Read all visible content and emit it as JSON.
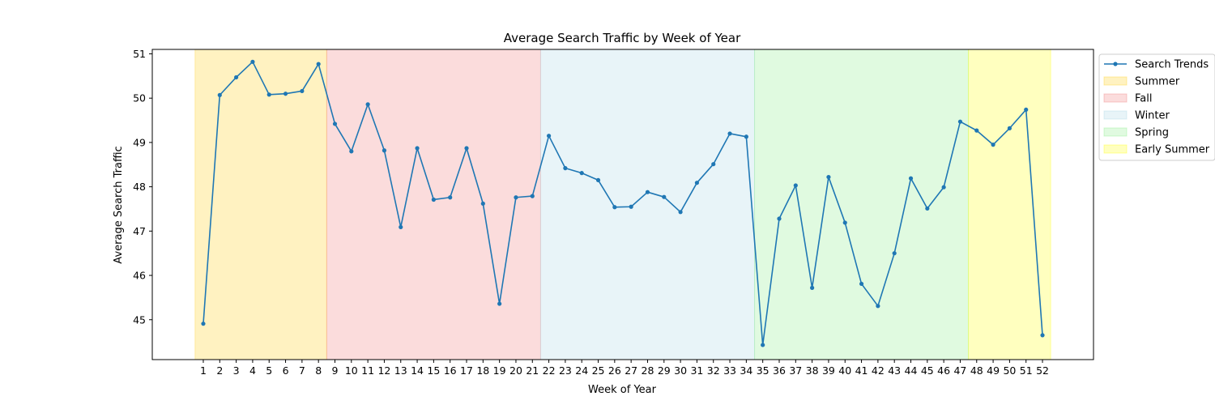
{
  "chart_data": {
    "type": "line",
    "title": "Average Search Traffic by Week of Year",
    "xlabel": "Week of Year",
    "ylabel": "Average Search Traffic",
    "x": [
      1,
      2,
      3,
      4,
      5,
      6,
      7,
      8,
      9,
      10,
      11,
      12,
      13,
      14,
      15,
      16,
      17,
      18,
      19,
      20,
      21,
      22,
      23,
      24,
      25,
      26,
      27,
      28,
      29,
      30,
      31,
      32,
      33,
      34,
      35,
      36,
      37,
      38,
      39,
      40,
      41,
      42,
      43,
      44,
      45,
      46,
      47,
      48,
      49,
      50,
      51,
      52
    ],
    "xticks": [
      "1",
      "2",
      "3",
      "4",
      "5",
      "6",
      "7",
      "8",
      "9",
      "10",
      "11",
      "12",
      "13",
      "14",
      "15",
      "16",
      "17",
      "18",
      "19",
      "20",
      "21",
      "22",
      "23",
      "24",
      "25",
      "26",
      "27",
      "28",
      "29",
      "30",
      "31",
      "32",
      "33",
      "34",
      "35",
      "36",
      "37",
      "38",
      "39",
      "40",
      "41",
      "42",
      "43",
      "44",
      "45",
      "46",
      "47",
      "48",
      "49",
      "50",
      "51",
      "52"
    ],
    "yticks": [
      "45",
      "46",
      "47",
      "48",
      "49",
      "50",
      "51"
    ],
    "ylim": [
      44.1,
      51.1
    ],
    "xlim": [
      -2.1,
      55.1
    ],
    "grid": false,
    "legend_position": "upper right, outside",
    "series": [
      {
        "name": "Search Trends",
        "color": "#1f77b4",
        "values": [
          44.91,
          50.07,
          50.47,
          50.82,
          50.08,
          50.1,
          50.16,
          50.77,
          49.42,
          48.8,
          49.86,
          48.82,
          47.09,
          48.87,
          47.71,
          47.76,
          48.87,
          47.62,
          45.36,
          47.76,
          47.79,
          49.15,
          48.42,
          48.31,
          48.15,
          47.54,
          47.55,
          47.88,
          47.77,
          47.43,
          48.09,
          48.51,
          49.2,
          49.13,
          44.43,
          47.28,
          48.03,
          45.72,
          48.22,
          47.19,
          45.81,
          45.31,
          46.5,
          48.19,
          47.51,
          47.99,
          49.47,
          49.27,
          48.95,
          49.32,
          49.74,
          44.65
        ]
      }
    ],
    "seasons": [
      {
        "name": "Summer",
        "start": 0.5,
        "end": 8.5,
        "color": "#ffd94d",
        "alpha": 0.35
      },
      {
        "name": "Fall",
        "start": 8.5,
        "end": 21.5,
        "color": "#f08080",
        "alpha": 0.28
      },
      {
        "name": "Winter",
        "start": 21.5,
        "end": 34.5,
        "color": "#add8e6",
        "alpha": 0.28
      },
      {
        "name": "Spring",
        "start": 34.5,
        "end": 47.5,
        "color": "#90ee90",
        "alpha": 0.28
      },
      {
        "name": "Early Summer",
        "start": 47.5,
        "end": 52.5,
        "color": "#ffff00",
        "alpha": 0.25
      }
    ],
    "legend": [
      "Search Trends",
      "Summer",
      "Fall",
      "Winter",
      "Spring",
      "Early Summer"
    ]
  }
}
